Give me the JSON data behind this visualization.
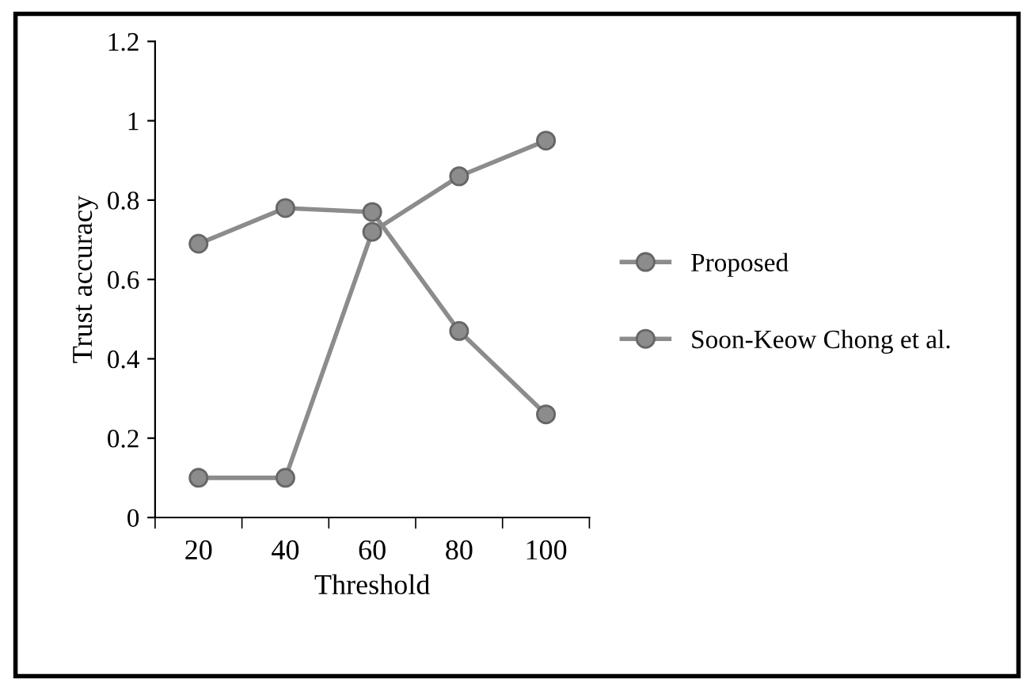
{
  "chart_data": {
    "type": "line",
    "xlabel": "Threshold",
    "ylabel": "Trust accuracy",
    "categories": [
      "20",
      "40",
      "60",
      "80",
      "100"
    ],
    "series": [
      {
        "name": "Proposed",
        "color": "#8c8c8c",
        "values": [
          0.1,
          0.1,
          0.72,
          0.86,
          0.95
        ]
      },
      {
        "name": "Soon-Keow Chong et al.",
        "color": "#8c8c8c",
        "values": [
          0.69,
          0.78,
          0.77,
          0.47,
          0.26
        ]
      }
    ],
    "ylim": [
      0,
      1.2
    ],
    "yticks": [
      0,
      0.2,
      0.4,
      0.6,
      0.8,
      1,
      1.2
    ],
    "grid": false,
    "legend": "right",
    "marker": "circle",
    "line_style": "solid"
  }
}
